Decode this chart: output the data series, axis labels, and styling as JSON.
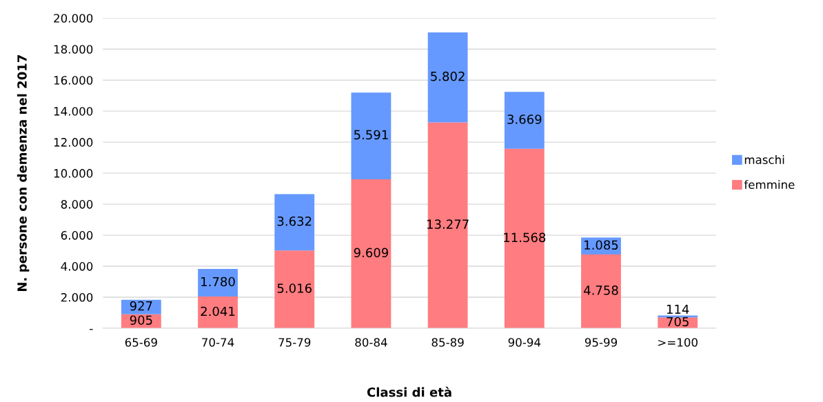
{
  "chart_data": {
    "type": "bar",
    "stacked": true,
    "xlabel": "Classi di età",
    "ylabel": "N. persone con demenza nel 2017",
    "categories": [
      "65-69",
      "70-74",
      "75-79",
      "80-84",
      "85-89",
      "90-94",
      "95-99",
      ">=100"
    ],
    "series": [
      {
        "name": "femmine",
        "color": "#ff7c80",
        "values": [
          905,
          2041,
          5016,
          9609,
          13277,
          11568,
          4758,
          705
        ],
        "value_labels": [
          "905",
          "2.041",
          "5.016",
          "9.609",
          "13.277",
          "11.568",
          "4.758",
          "705"
        ]
      },
      {
        "name": "maschi",
        "color": "#6699ff",
        "values": [
          927,
          1780,
          3632,
          5591,
          5802,
          3669,
          1085,
          114
        ],
        "value_labels": [
          "927",
          "1.780",
          "3.632",
          "5.591",
          "5.802",
          "3.669",
          "1.085",
          "114"
        ]
      }
    ],
    "ylim": [
      0,
      20000
    ],
    "yticks": [
      {
        "value": 0,
        "label": "-"
      },
      {
        "value": 2000,
        "label": "2.000"
      },
      {
        "value": 4000,
        "label": "4.000"
      },
      {
        "value": 6000,
        "label": "6.000"
      },
      {
        "value": 8000,
        "label": "8.000"
      },
      {
        "value": 10000,
        "label": "10.000"
      },
      {
        "value": 12000,
        "label": "12.000"
      },
      {
        "value": 14000,
        "label": "14.000"
      },
      {
        "value": 16000,
        "label": "16.000"
      },
      {
        "value": 18000,
        "label": "18.000"
      },
      {
        "value": 20000,
        "label": "20.000"
      }
    ],
    "grid": "y",
    "legend": "right"
  }
}
